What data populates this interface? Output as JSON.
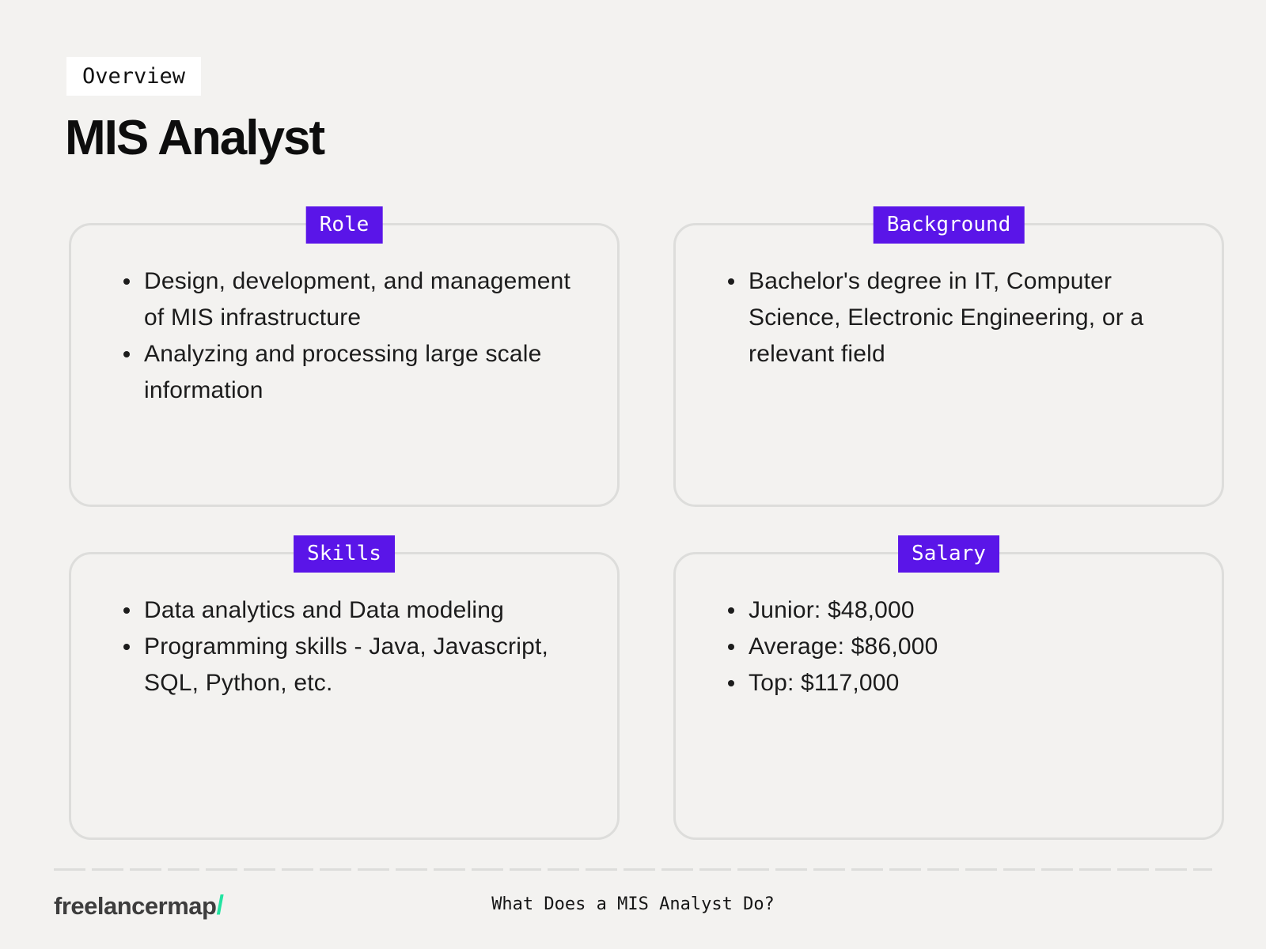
{
  "colors": {
    "background": "#f3f2f0",
    "card_border": "#dddddb",
    "label_bg": "#5a15e8",
    "label_text": "#ffffff",
    "body_text": "#1c1c1c",
    "brand_text": "#3d3d3d",
    "brand_slash": "#22e3a1"
  },
  "header": {
    "tag_label": "Overview",
    "title": "MIS Analyst"
  },
  "cards": [
    {
      "label": "Role",
      "bullets": [
        "Design, development, and management of MIS infrastructure",
        "Analyzing and processing large scale information"
      ]
    },
    {
      "label": "Background",
      "bullets": [
        "Bachelor's degree in IT, Computer Science, Electronic Engineering, or a relevant field"
      ]
    },
    {
      "label": "Skills",
      "bullets": [
        "Data analytics and Data modeling",
        "Programming skills - Java, Javascript, SQL, Python, etc."
      ]
    },
    {
      "label": "Salary",
      "bullets": [
        "Junior: $48,000",
        "Average: $86,000",
        "Top: $117,000"
      ]
    }
  ],
  "footer": {
    "brand_name": "freelancermap",
    "brand_slash": "/",
    "caption": "What Does a MIS Analyst Do?"
  }
}
